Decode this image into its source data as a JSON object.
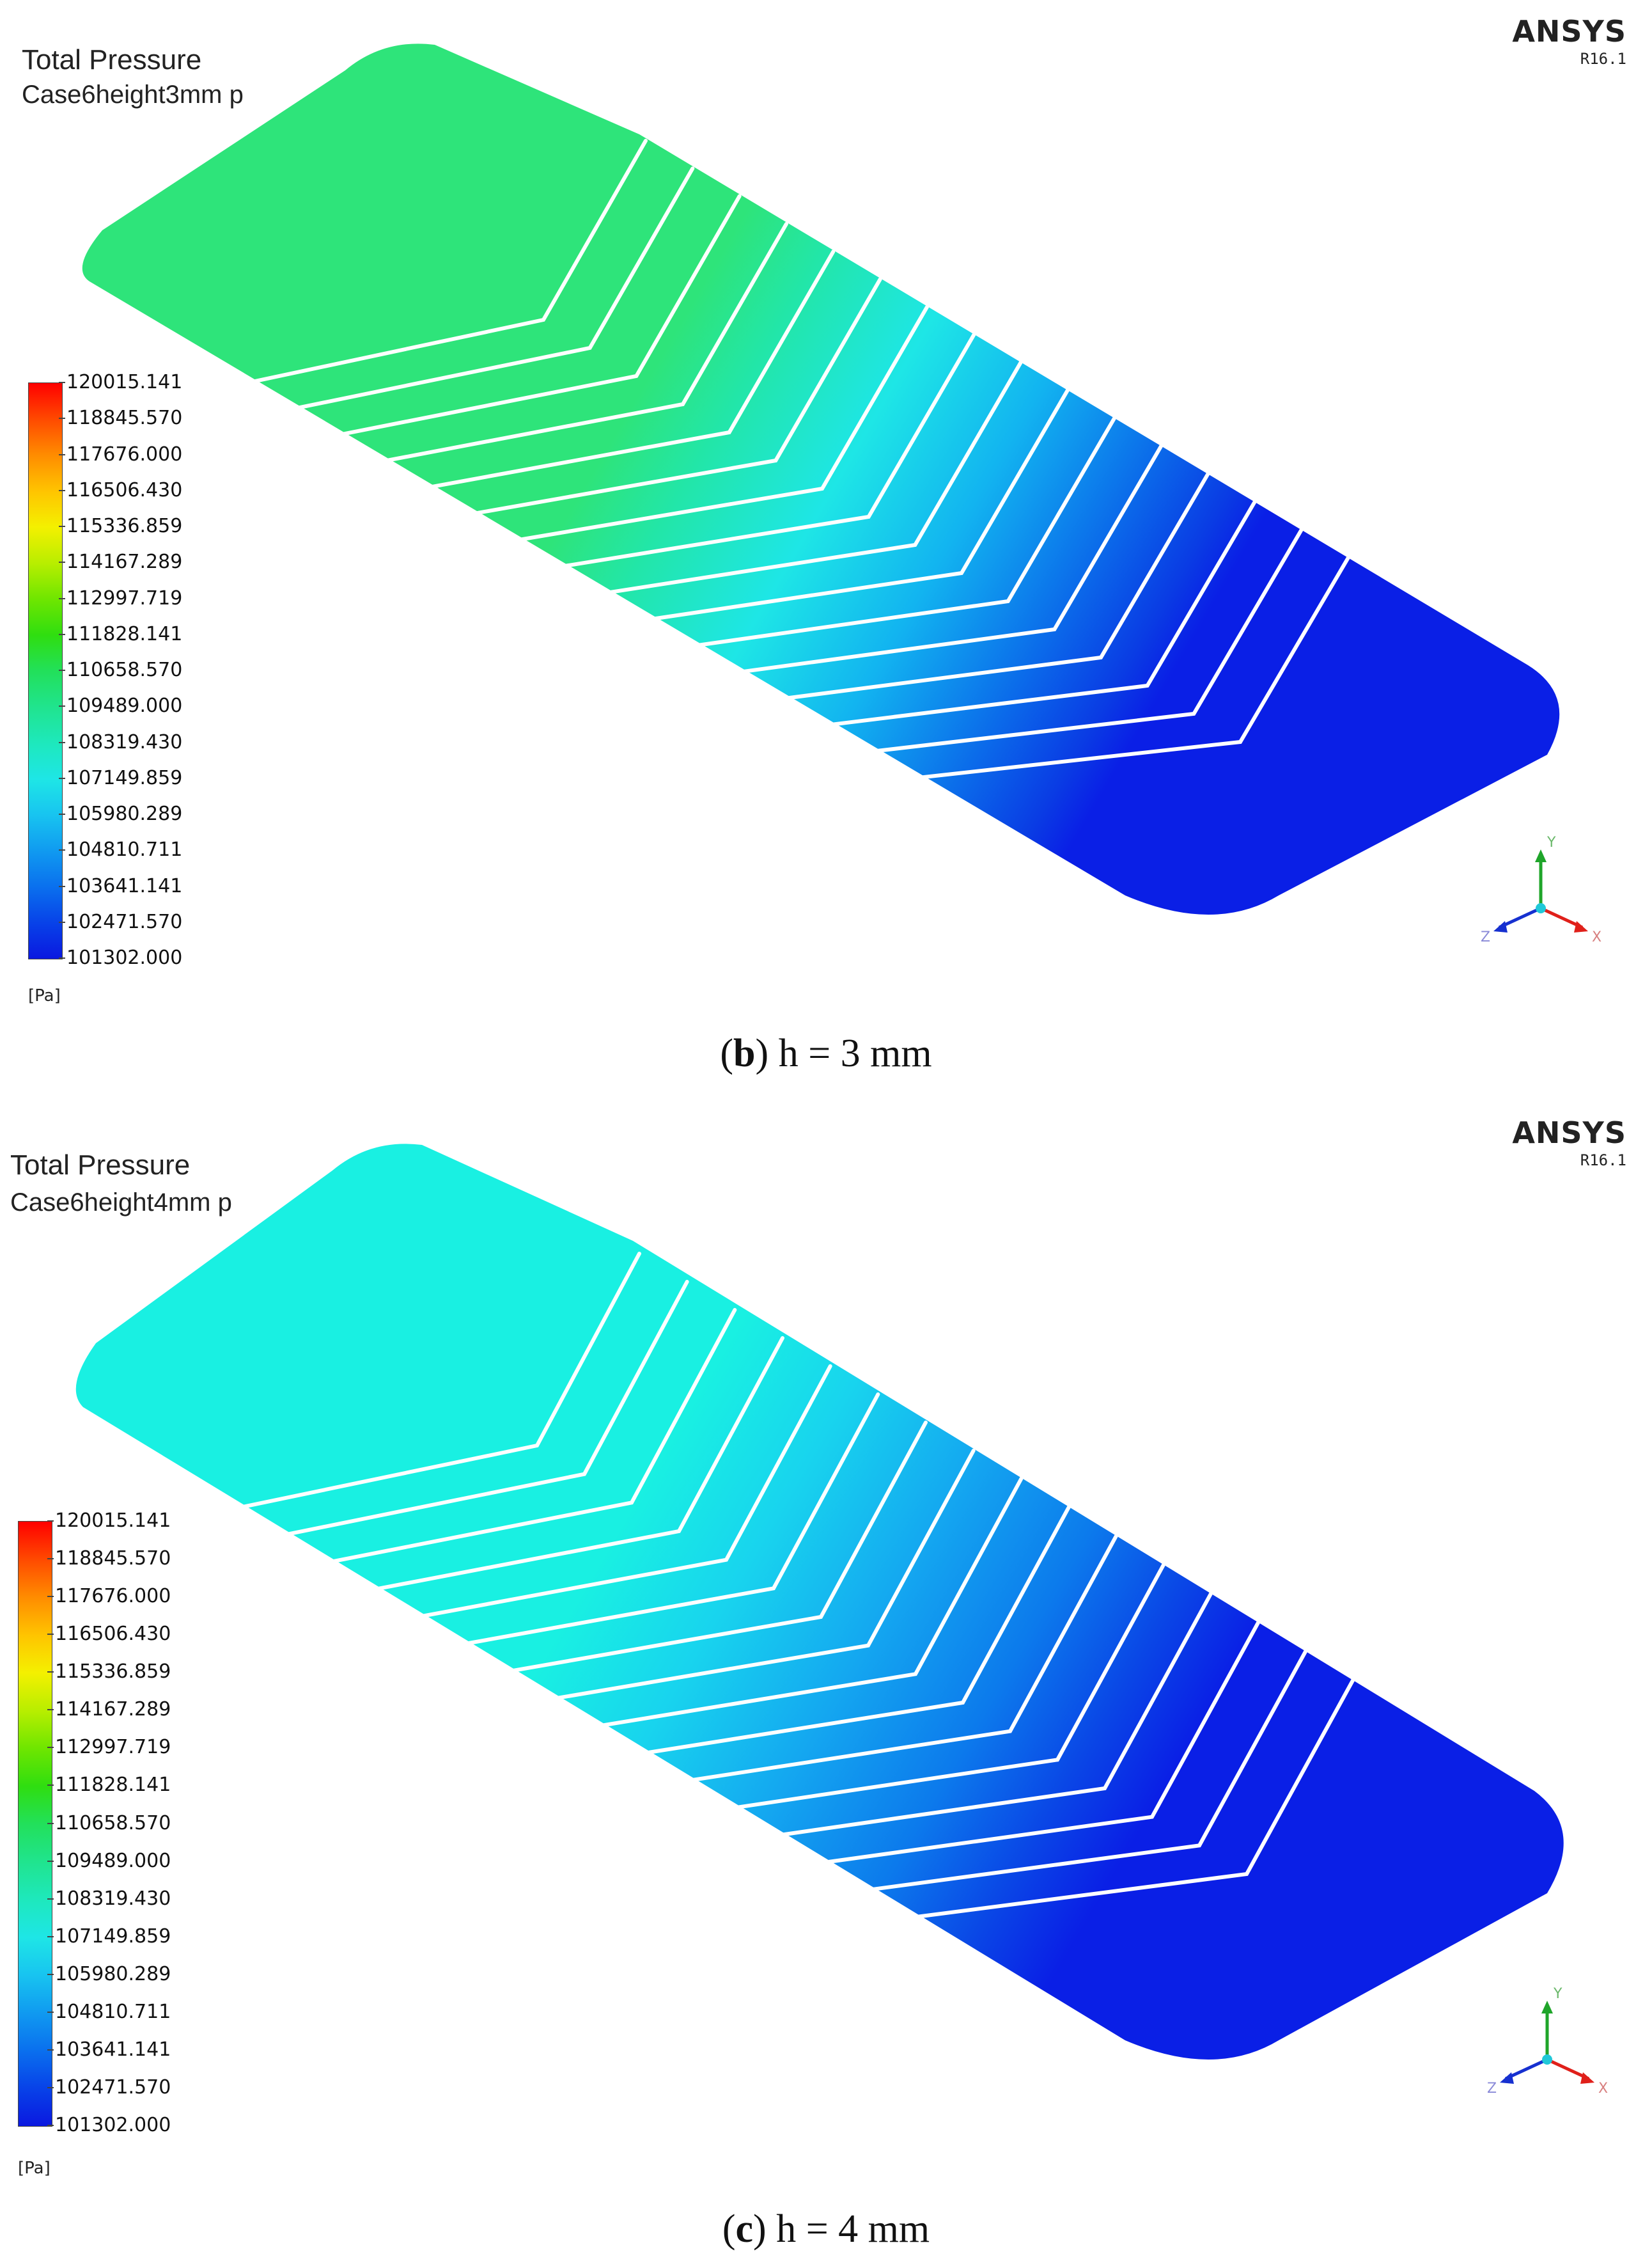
{
  "figures": [
    {
      "title": "Total Pressure",
      "subtitle": "Case6height3mm p",
      "brand": "ANSYS",
      "version": "R16.1",
      "legend_values": [
        "120015.141",
        "118845.570",
        "117676.000",
        "116506.430",
        "115336.859",
        "114167.289",
        "112997.719",
        "111828.141",
        "110658.570",
        "109489.000",
        "108319.430",
        "107149.859",
        "105980.289",
        "104810.711",
        "103641.141",
        "102471.570",
        "101302.000"
      ],
      "unit": "[Pa]",
      "caption_letter": "b",
      "caption_text": " h = 3 mm",
      "inlet_color": "#2ee47a",
      "outlet_color": "#0a1fe6",
      "axis_labels": {
        "y": "Y",
        "x": "X",
        "z": "Z"
      }
    },
    {
      "title": "Total Pressure",
      "subtitle": "Case6height4mm p",
      "brand": "ANSYS",
      "version": "R16.1",
      "legend_values": [
        "120015.141",
        "118845.570",
        "117676.000",
        "116506.430",
        "115336.859",
        "114167.289",
        "112997.719",
        "111828.141",
        "110658.570",
        "109489.000",
        "108319.430",
        "107149.859",
        "105980.289",
        "104810.711",
        "103641.141",
        "102471.570",
        "101302.000"
      ],
      "unit": "[Pa]",
      "caption_letter": "c",
      "caption_text": " h = 4 mm",
      "inlet_color": "#19f0e2",
      "outlet_color": "#0a1fe6",
      "axis_labels": {
        "y": "Y",
        "x": "X",
        "z": "Z"
      }
    }
  ],
  "colormap": [
    "#ff0000",
    "#ff4a00",
    "#ff8c00",
    "#ffc400",
    "#f4f000",
    "#b8ee00",
    "#6fe600",
    "#2fde10",
    "#22e05a",
    "#20e48e",
    "#1ee8bc",
    "#1ee6e6",
    "#18c4f0",
    "#109af0",
    "#0a70ee",
    "#0842e8",
    "#0a18e0"
  ]
}
